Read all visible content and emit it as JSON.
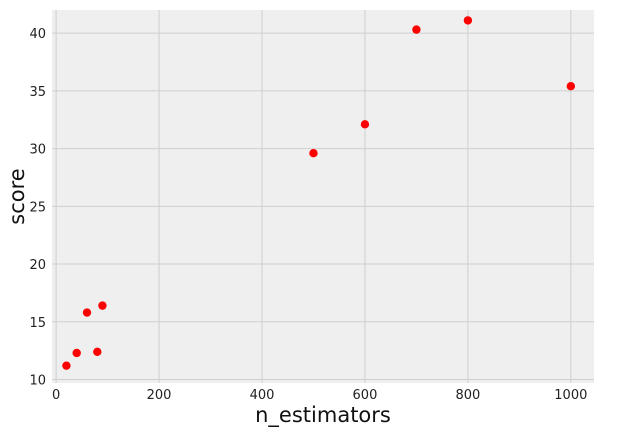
{
  "chart_data": {
    "type": "scatter",
    "title": "",
    "xlabel": "n_estimators",
    "ylabel": "score",
    "xlim": [
      -8,
      1045
    ],
    "ylim": [
      9.7,
      42
    ],
    "xticks": [
      0,
      200,
      400,
      600,
      800,
      1000
    ],
    "yticks": [
      10,
      15,
      20,
      25,
      30,
      35,
      40
    ],
    "grid": true,
    "legend": "none",
    "point_color": "#ff0000",
    "plot_background": "#efefef",
    "grid_color": "#cfcfcf",
    "points": [
      {
        "x": 20,
        "y": 11.2
      },
      {
        "x": 40,
        "y": 12.3
      },
      {
        "x": 60,
        "y": 15.8
      },
      {
        "x": 80,
        "y": 12.4
      },
      {
        "x": 90,
        "y": 16.4
      },
      {
        "x": 500,
        "y": 29.6
      },
      {
        "x": 600,
        "y": 32.1
      },
      {
        "x": 700,
        "y": 40.3
      },
      {
        "x": 800,
        "y": 41.1
      },
      {
        "x": 1000,
        "y": 35.4
      }
    ]
  }
}
